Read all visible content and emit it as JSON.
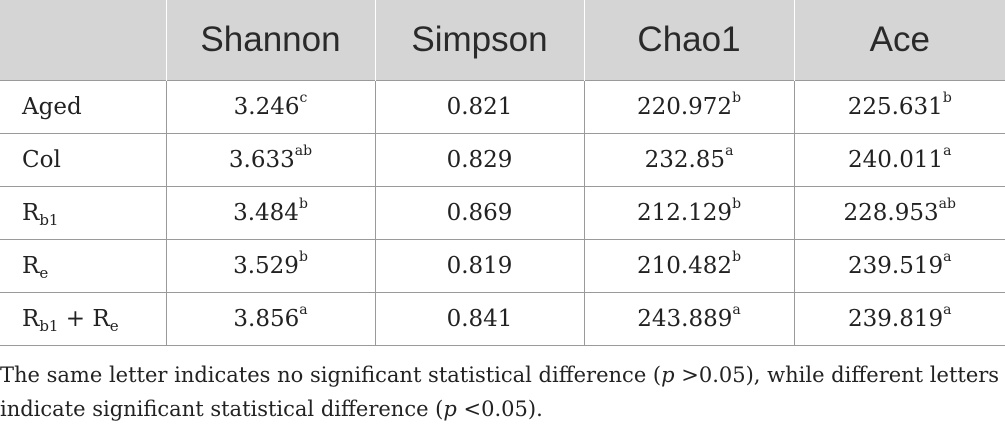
{
  "header": [
    "",
    "Shannon",
    "Simpson",
    "Chao1",
    "Ace"
  ],
  "rows": [
    {
      "label": {
        "base": "Aged"
      },
      "cells": [
        {
          "v": "3.246",
          "sup": "c"
        },
        {
          "v": "0.821"
        },
        {
          "v": "220.972",
          "sup": "b"
        },
        {
          "v": "225.631",
          "sup": "b"
        }
      ]
    },
    {
      "label": {
        "base": "Col"
      },
      "cells": [
        {
          "v": "3.633",
          "sup": "ab"
        },
        {
          "v": "0.829"
        },
        {
          "v": "232.85",
          "sup": "a"
        },
        {
          "v": "240.011",
          "sup": "a"
        }
      ]
    },
    {
      "label": {
        "base": "R",
        "sub": "b1"
      },
      "cells": [
        {
          "v": "3.484",
          "sup": "b"
        },
        {
          "v": "0.869"
        },
        {
          "v": "212.129",
          "sup": "b"
        },
        {
          "v": "228.953",
          "sup": "ab"
        }
      ]
    },
    {
      "label": {
        "base": "R",
        "sub": "e"
      },
      "cells": [
        {
          "v": "3.529",
          "sup": "b"
        },
        {
          "v": "0.819"
        },
        {
          "v": "210.482",
          "sup": "b"
        },
        {
          "v": "239.519",
          "sup": "a"
        }
      ]
    },
    {
      "label": {
        "base": "R",
        "sub": "b1",
        "mid": " + R",
        "sub2": "e"
      },
      "cells": [
        {
          "v": "3.856",
          "sup": "a"
        },
        {
          "v": "0.841"
        },
        {
          "v": "243.889",
          "sup": "a"
        },
        {
          "v": "239.819",
          "sup": "a"
        }
      ]
    }
  ],
  "note": {
    "t1": "The same letter indicates no significant statistical difference (",
    "p1": "p",
    "t2": " >0.05), while different letters indicate significant statistical difference (",
    "p2": "p",
    "t3": " <0.05)."
  }
}
